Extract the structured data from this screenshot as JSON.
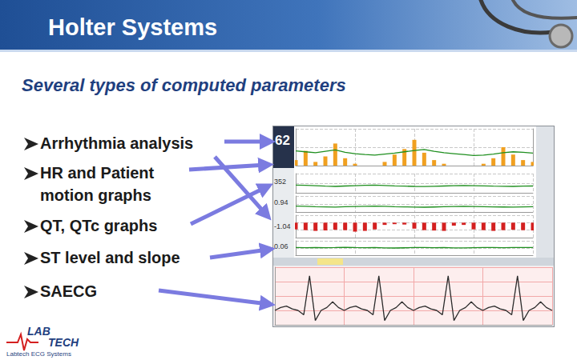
{
  "header": {
    "title": "Holter Systems"
  },
  "subtitle": "Several types of computed parameters",
  "bullets": [
    [
      "Arrhythmia analysis"
    ],
    [
      "HR and Patient",
      "motion graphs"
    ],
    [
      "QT, QTc graphs"
    ],
    [
      "ST level and slope"
    ],
    [
      "SAECG"
    ]
  ],
  "logo": {
    "text": [
      "LAB",
      "TECH"
    ],
    "caption": "Labtech ECG Systems"
  },
  "screenshot": {
    "hr_value": "62",
    "side_labels": [
      "352",
      "0.94",
      "-1.04",
      "0.06"
    ]
  },
  "chart_data": [
    {
      "type": "line",
      "x": [
        0,
        1,
        2,
        3,
        4,
        5,
        6,
        7,
        8,
        9,
        10,
        11,
        12,
        13,
        14,
        15,
        16,
        17,
        18,
        19,
        20,
        21,
        22,
        23,
        24
      ],
      "xlim": [
        0,
        24
      ],
      "xticks": [
        0,
        6,
        12,
        18,
        24
      ],
      "ylim": [
        40,
        120
      ],
      "yticks": [
        40,
        80,
        120
      ],
      "y2lim": [
        0,
        20
      ],
      "y2ticks": [
        0,
        10,
        20
      ],
      "series": [
        {
          "type": "bar",
          "axis": "y2",
          "color": "#f0a020",
          "values": [
            3,
            8,
            2,
            5,
            12,
            4,
            1,
            0,
            0,
            2,
            6,
            9,
            14,
            7,
            3,
            1,
            0,
            0,
            0,
            1,
            4,
            10,
            6,
            3,
            2
          ]
        },
        {
          "type": "line",
          "color": "#1f8f1f",
          "values": [
            72,
            70,
            68,
            71,
            74,
            69,
            66,
            64,
            63,
            65,
            67,
            70,
            73,
            75,
            71,
            68,
            66,
            64,
            62,
            63,
            65,
            68,
            70,
            69,
            67
          ]
        }
      ],
      "grid": true,
      "tick_labels": false
    },
    {
      "type": "line",
      "x": [
        0,
        1,
        2,
        3,
        4,
        5,
        6,
        7,
        8,
        9,
        10,
        11,
        12,
        13,
        14,
        15,
        16,
        17,
        18,
        19,
        20,
        21,
        22,
        23,
        24
      ],
      "xlim": [
        0,
        24
      ],
      "xticks": [
        0,
        6,
        12,
        18,
        24
      ],
      "ylim": [
        300,
        450
      ],
      "yticks": [
        300,
        375,
        450
      ],
      "series": [
        {
          "color": "#1f8f1f",
          "values": [
            360,
            358,
            355,
            352,
            350,
            353,
            356,
            358,
            360,
            357,
            354,
            352,
            350,
            349,
            351,
            353,
            355,
            357,
            356,
            354,
            352,
            351,
            350,
            352,
            353
          ]
        }
      ],
      "grid": true,
      "tick_labels": false
    },
    {
      "type": "line",
      "x": [
        0,
        1,
        2,
        3,
        4,
        5,
        6,
        7,
        8,
        9,
        10,
        11,
        12,
        13,
        14,
        15,
        16,
        17,
        18,
        19,
        20,
        21,
        22,
        23,
        24
      ],
      "xlim": [
        0,
        24
      ],
      "xticks": [
        0,
        6,
        12,
        18,
        24
      ],
      "ylim": [
        350,
        500
      ],
      "yticks": [
        350,
        425,
        500
      ],
      "series": [
        {
          "color": "#1f8f1f",
          "values": [
            405,
            403,
            400,
            398,
            396,
            399,
            402,
            404,
            406,
            403,
            400,
            398,
            396,
            395,
            397,
            399,
            401,
            403,
            402,
            400,
            398,
            397,
            396,
            398,
            399
          ]
        }
      ],
      "grid": true,
      "tick_labels": false
    },
    {
      "type": "bar",
      "x": [
        0,
        1,
        2,
        3,
        4,
        5,
        6,
        7,
        8,
        9,
        10,
        11,
        12,
        13,
        14,
        15,
        16,
        17,
        18,
        19,
        20,
        21,
        22,
        23,
        24
      ],
      "xlim": [
        0,
        24
      ],
      "xticks": [
        0,
        6,
        12,
        18,
        24
      ],
      "ylim": [
        -2,
        1
      ],
      "yticks": [
        -2,
        -1,
        0,
        1
      ],
      "series": [
        {
          "color": "#d42020",
          "values": [
            -0.9,
            -1.0,
            -1.1,
            -1.04,
            -0.95,
            -1.0,
            -1.2,
            -1.1,
            -0.9,
            -0.3,
            -0.2,
            -0.25,
            -0.8,
            -1.0,
            -1.05,
            -1.1,
            -0.4,
            -0.3,
            -0.9,
            -1.0,
            -1.1,
            -1.0,
            -0.95,
            -1.0,
            -1.04
          ]
        }
      ],
      "grid": true,
      "tick_labels": false
    },
    {
      "type": "line",
      "x": [
        0,
        1,
        2,
        3,
        4,
        5,
        6,
        7,
        8,
        9,
        10,
        11,
        12,
        13,
        14,
        15,
        16,
        17,
        18,
        19,
        20,
        21,
        22,
        23,
        24
      ],
      "xlim": [
        0,
        24
      ],
      "xticks": [
        0,
        6,
        12,
        18,
        24
      ],
      "ylim": [
        -1,
        1
      ],
      "yticks": [
        -1,
        0,
        1
      ],
      "series": [
        {
          "color": "#1f8f1f",
          "values": [
            0.06,
            0.05,
            0.08,
            0.04,
            0.06,
            0.1,
            0.07,
            0.05,
            0.06,
            0.02,
            0.0,
            0.03,
            0.06,
            0.08,
            0.05,
            0.06,
            0.02,
            0.01,
            0.05,
            0.07,
            0.06,
            0.05,
            0.08,
            0.06,
            0.06
          ]
        }
      ],
      "grid": true,
      "tick_labels": false
    },
    {
      "type": "line",
      "x": [
        0,
        1,
        2,
        3,
        4,
        5,
        6,
        7,
        8,
        9,
        10,
        11,
        12,
        13,
        14,
        15,
        16,
        17,
        18,
        19,
        20,
        21,
        22,
        23,
        24,
        25,
        26,
        27,
        28,
        29,
        30,
        31,
        32,
        33,
        34,
        35,
        36,
        37,
        38,
        39,
        40,
        41,
        42,
        43,
        44,
        45,
        46,
        47,
        48
      ],
      "xlim": [
        0,
        48
      ],
      "xticks": [
        0,
        12,
        24,
        36,
        48
      ],
      "ylim": [
        -0.5,
        1.5
      ],
      "yticks": [
        -0.5,
        0,
        0.5,
        1,
        1.5
      ],
      "series": [
        {
          "color": "#2b2b2b",
          "values": [
            0,
            0.1,
            0.15,
            0.05,
            0,
            -0.15,
            1.2,
            -0.35,
            0,
            0.1,
            0.3,
            0.1,
            0,
            0.1,
            0.15,
            0.05,
            0,
            -0.15,
            1.2,
            -0.35,
            0,
            0.1,
            0.3,
            0.1,
            0,
            0.1,
            0.15,
            0.05,
            0,
            -0.15,
            1.2,
            -0.35,
            0,
            0.1,
            0.3,
            0.1,
            0,
            0.1,
            0.15,
            0.05,
            0,
            -0.15,
            1.2,
            -0.35,
            0,
            0.1,
            0.3,
            0.1,
            0
          ]
        }
      ],
      "grid": true,
      "tick_labels": false
    }
  ]
}
